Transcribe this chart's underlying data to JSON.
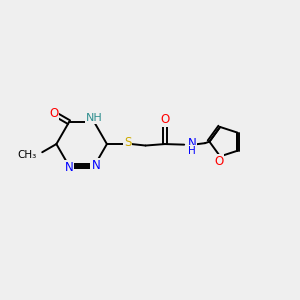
{
  "bg_color": "#efefef",
  "atom_colors": {
    "C": "#000000",
    "N": "#0000ff",
    "O": "#ff0000",
    "S": "#ccaa00",
    "H": "#2f8f8f"
  },
  "figsize": [
    3.0,
    3.0
  ],
  "dpi": 100,
  "lw": 1.4,
  "fontsize": 8.5
}
